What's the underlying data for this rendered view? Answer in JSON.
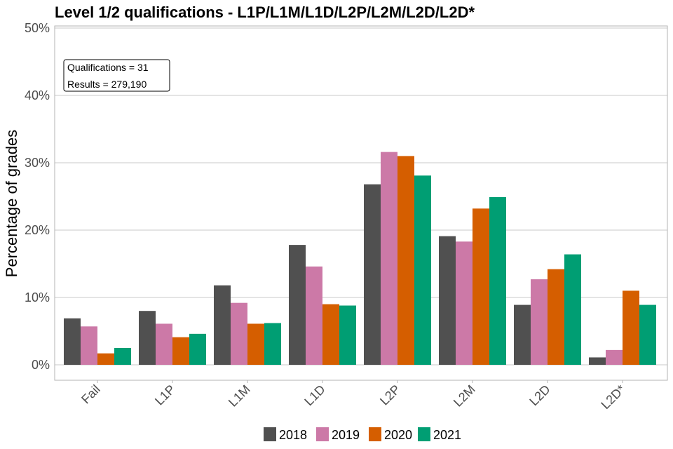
{
  "chart_data": {
    "type": "bar",
    "title": "Level 1/2 qualifications  - L1P/L1M/L1D/L2P/L2M/L2D/L2D*",
    "xlabel": "",
    "ylabel": "Percentage of grades",
    "ylim": [
      0,
      50
    ],
    "yticks": [
      0,
      10,
      20,
      30,
      40,
      50
    ],
    "ytick_labels": [
      "0%",
      "10%",
      "20%",
      "30%",
      "40%",
      "50%"
    ],
    "categories": [
      "Fail",
      "L1P",
      "L1M",
      "L1D",
      "L2P",
      "L2M",
      "L2D",
      "L2D*"
    ],
    "series": [
      {
        "name": "2018",
        "color": "#505050",
        "values": [
          6.9,
          8.0,
          11.8,
          17.8,
          26.8,
          19.1,
          8.9,
          1.1
        ]
      },
      {
        "name": "2019",
        "color": "#cc79a7",
        "values": [
          5.7,
          6.1,
          9.2,
          14.6,
          31.6,
          18.3,
          12.7,
          2.2
        ]
      },
      {
        "name": "2020",
        "color": "#d55e00",
        "values": [
          1.7,
          4.1,
          6.1,
          9.0,
          31.0,
          23.2,
          14.2,
          11.0
        ]
      },
      {
        "name": "2021",
        "color": "#009e73",
        "values": [
          2.5,
          4.6,
          6.2,
          8.8,
          28.1,
          24.9,
          16.4,
          8.9
        ]
      }
    ],
    "annotation": [
      "Qualifications = 31",
      "Results = 279,190"
    ],
    "legend_position": "bottom",
    "grid": true
  }
}
